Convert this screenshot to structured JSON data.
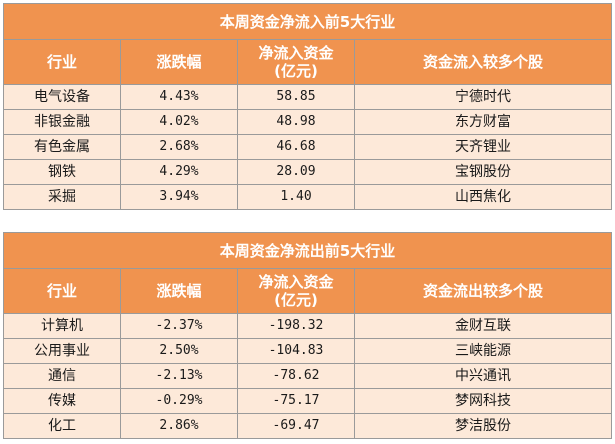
{
  "inflow": {
    "title": "本周资金净流入前5大行业",
    "headers": {
      "industry": "行业",
      "change": "涨跌幅",
      "net_line1": "净流入资金",
      "net_line2": "(亿元)",
      "stocks": "资金流入较多个股"
    },
    "rows": [
      {
        "industry": "电气设备",
        "change": "4.43%",
        "net": "58.85",
        "stock": "宁德时代"
      },
      {
        "industry": "非银金融",
        "change": "4.02%",
        "net": "48.98",
        "stock": "东方财富"
      },
      {
        "industry": "有色金属",
        "change": "2.68%",
        "net": "46.68",
        "stock": "天齐锂业"
      },
      {
        "industry": "钢铁",
        "change": "4.29%",
        "net": "28.09",
        "stock": "宝钢股份"
      },
      {
        "industry": "采掘",
        "change": "3.94%",
        "net": "1.40",
        "stock": "山西焦化"
      }
    ]
  },
  "outflow": {
    "title": "本周资金净流出前5大行业",
    "headers": {
      "industry": "行业",
      "change": "涨跌幅",
      "net_line1": "净流入资金",
      "net_line2": "(亿元)",
      "stocks": "资金流出较多个股"
    },
    "rows": [
      {
        "industry": "计算机",
        "change": "-2.37%",
        "net": "-198.32",
        "stock": "金财互联"
      },
      {
        "industry": "公用事业",
        "change": "2.50%",
        "net": "-104.83",
        "stock": "三峡能源"
      },
      {
        "industry": "通信",
        "change": "-2.13%",
        "net": "-78.62",
        "stock": "中兴通讯"
      },
      {
        "industry": "传媒",
        "change": "-0.29%",
        "net": "-75.17",
        "stock": "梦网科技"
      },
      {
        "industry": "化工",
        "change": "2.86%",
        "net": "-69.47",
        "stock": "梦洁股份"
      }
    ]
  },
  "colors": {
    "header_bg": "#f0934f",
    "row_bg": "#fde9d9",
    "border": "#9a9a9a"
  }
}
